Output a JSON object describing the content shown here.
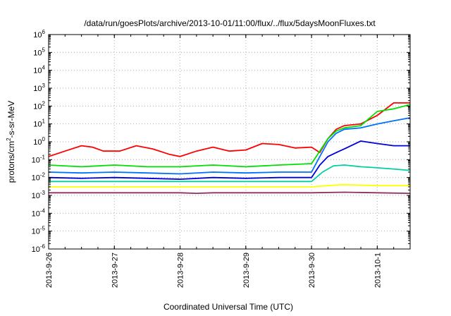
{
  "chart_data": {
    "type": "line",
    "title": "/data/run/goesPlots/archive/2013-10-01/11:00/flux/../flux/5daysMoonFluxes.txt",
    "xlabel": "Coordinated Universal Time (UTC)",
    "ylabel": {
      "prefix": "protons/cm",
      "sup": "2",
      "suffix": "-s-sr-MeV"
    },
    "yscale": "log",
    "ylim": [
      "1e-6",
      "1e6"
    ],
    "yticks": [
      {
        "value": "1e6",
        "base": "10",
        "exp": "6"
      },
      {
        "value": "1e5",
        "base": "10",
        "exp": "5"
      },
      {
        "value": "1e4",
        "base": "10",
        "exp": "4"
      },
      {
        "value": "1e3",
        "base": "10",
        "exp": "3"
      },
      {
        "value": "1e2",
        "base": "10",
        "exp": "2"
      },
      {
        "value": "1e1",
        "base": "10",
        "exp": "1"
      },
      {
        "value": "1e0",
        "base": "10",
        "exp": "0"
      },
      {
        "value": "1e-1",
        "base": "10",
        "exp": "-1"
      },
      {
        "value": "1e-2",
        "base": "10",
        "exp": "-2"
      },
      {
        "value": "1e-3",
        "base": "10",
        "exp": "-3"
      },
      {
        "value": "1e-4",
        "base": "10",
        "exp": "-4"
      },
      {
        "value": "1e-5",
        "base": "10",
        "exp": "-5"
      },
      {
        "value": "1e-6",
        "base": "10",
        "exp": "-6"
      }
    ],
    "xlim": [
      "2013-09-26",
      "2013-10-01 12:00"
    ],
    "xticks": [
      "2013-9-26",
      "2013-9-27",
      "2013-9-28",
      "2013-9-29",
      "2013-9-30",
      "2013-10-1"
    ],
    "grid": true,
    "series": [
      {
        "color": "#ff0000",
        "x": [
          "2013-09-26 00:00",
          "2013-09-26 06:00",
          "2013-09-26 12:00",
          "2013-09-26 16:00",
          "2013-09-26 20:00",
          "2013-09-27 02:00",
          "2013-09-27 08:00",
          "2013-09-27 14:00",
          "2013-09-27 20:00",
          "2013-09-28 00:00",
          "2013-09-28 06:00",
          "2013-09-28 12:00",
          "2013-09-28 18:00",
          "2013-09-29 00:00",
          "2013-09-29 06:00",
          "2013-09-29 12:00",
          "2013-09-29 18:00",
          "2013-09-30 00:00",
          "2013-09-30 03:00",
          "2013-09-30 06:00",
          "2013-09-30 09:00",
          "2013-09-30 12:00",
          "2013-09-30 18:00",
          "2013-10-01 00:00",
          "2013-10-01 06:00",
          "2013-10-01 12:00"
        ],
        "y": [
          0.15,
          0.3,
          0.6,
          0.5,
          0.3,
          0.3,
          0.6,
          0.4,
          0.2,
          0.15,
          0.3,
          0.5,
          0.3,
          0.35,
          0.8,
          0.7,
          0.45,
          0.5,
          0.25,
          1.5,
          5,
          8,
          10,
          30,
          150,
          150
        ]
      },
      {
        "color": "#00e000",
        "x": [
          "2013-09-26 00:00",
          "2013-09-26 12:00",
          "2013-09-27 00:00",
          "2013-09-27 12:00",
          "2013-09-28 00:00",
          "2013-09-28 12:00",
          "2013-09-29 00:00",
          "2013-09-29 12:00",
          "2013-09-30 00:00",
          "2013-09-30 03:00",
          "2013-09-30 06:00",
          "2013-09-30 09:00",
          "2013-09-30 12:00",
          "2013-09-30 18:00",
          "2013-10-01 00:00",
          "2013-10-01 06:00",
          "2013-10-01 12:00"
        ],
        "y": [
          0.05,
          0.04,
          0.05,
          0.04,
          0.04,
          0.05,
          0.04,
          0.05,
          0.06,
          0.3,
          1.5,
          4,
          6,
          8,
          50,
          70,
          120
        ]
      },
      {
        "color": "#0070ff",
        "x": [
          "2013-09-26 00:00",
          "2013-09-26 12:00",
          "2013-09-27 00:00",
          "2013-09-27 12:00",
          "2013-09-28 00:00",
          "2013-09-28 12:00",
          "2013-09-29 00:00",
          "2013-09-29 12:00",
          "2013-09-30 00:00",
          "2013-09-30 03:00",
          "2013-09-30 06:00",
          "2013-09-30 09:00",
          "2013-09-30 12:00",
          "2013-09-30 18:00",
          "2013-10-01 00:00",
          "2013-10-01 06:00",
          "2013-10-01 12:00"
        ],
        "y": [
          0.02,
          0.018,
          0.02,
          0.018,
          0.016,
          0.02,
          0.018,
          0.02,
          0.02,
          0.15,
          1,
          3,
          5,
          6,
          10,
          15,
          22
        ]
      },
      {
        "color": "#0000dd",
        "x": [
          "2013-09-26 00:00",
          "2013-09-26 12:00",
          "2013-09-27 00:00",
          "2013-09-27 12:00",
          "2013-09-28 00:00",
          "2013-09-28 12:00",
          "2013-09-29 00:00",
          "2013-09-29 12:00",
          "2013-09-30 00:00",
          "2013-09-30 03:00",
          "2013-09-30 06:00",
          "2013-09-30 09:00",
          "2013-09-30 12:00",
          "2013-09-30 18:00",
          "2013-10-01 00:00",
          "2013-10-01 06:00",
          "2013-10-01 12:00"
        ],
        "y": [
          0.01,
          0.009,
          0.01,
          0.009,
          0.008,
          0.01,
          0.009,
          0.01,
          0.01,
          0.05,
          0.15,
          0.25,
          0.4,
          1.1,
          0.8,
          0.6,
          0.6
        ]
      },
      {
        "color": "#00d0a0",
        "x": [
          "2013-09-26 00:00",
          "2013-09-26 12:00",
          "2013-09-27 00:00",
          "2013-09-27 12:00",
          "2013-09-28 00:00",
          "2013-09-28 12:00",
          "2013-09-29 00:00",
          "2013-09-29 12:00",
          "2013-09-30 00:00",
          "2013-09-30 04:00",
          "2013-09-30 08:00",
          "2013-09-30 12:00",
          "2013-09-30 18:00",
          "2013-10-01 00:00",
          "2013-10-01 06:00",
          "2013-10-01 12:00"
        ],
        "y": [
          0.006,
          0.006,
          0.006,
          0.006,
          0.006,
          0.006,
          0.006,
          0.006,
          0.006,
          0.02,
          0.045,
          0.05,
          0.04,
          0.035,
          0.03,
          0.025
        ]
      },
      {
        "color": "#ffff00",
        "x": [
          "2013-09-26 00:00",
          "2013-09-26 12:00",
          "2013-09-27 00:00",
          "2013-09-27 12:00",
          "2013-09-28 00:00",
          "2013-09-28 12:00",
          "2013-09-29 00:00",
          "2013-09-29 12:00",
          "2013-09-30 00:00",
          "2013-09-30 06:00",
          "2013-09-30 12:00",
          "2013-10-01 00:00",
          "2013-10-01 12:00"
        ],
        "y": [
          0.003,
          0.003,
          0.003,
          0.003,
          0.003,
          0.003,
          0.003,
          0.003,
          0.003,
          0.0035,
          0.004,
          0.0035,
          0.0035
        ]
      },
      {
        "color": "#903060",
        "x": [
          "2013-09-26 00:00",
          "2013-09-26 12:00",
          "2013-09-27 00:00",
          "2013-09-27 12:00",
          "2013-09-28 00:00",
          "2013-09-28 06:00",
          "2013-09-28 12:00",
          "2013-09-29 00:00",
          "2013-09-29 12:00",
          "2013-09-30 00:00",
          "2013-09-30 12:00",
          "2013-10-01 00:00",
          "2013-10-01 12:00"
        ],
        "y": [
          0.0014,
          0.0014,
          0.0014,
          0.0014,
          0.0014,
          0.0013,
          0.0014,
          0.0014,
          0.0014,
          0.0014,
          0.0015,
          0.0014,
          0.0013
        ]
      }
    ]
  }
}
